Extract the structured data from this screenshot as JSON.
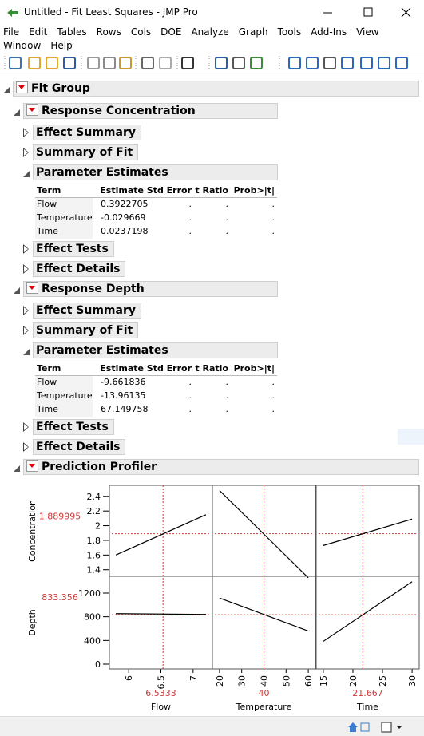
{
  "window": {
    "title": "Untitled - Fit Least Squares - JMP Pro"
  },
  "menu": [
    "File",
    "Edit",
    "Tables",
    "Rows",
    "Cols",
    "DOE",
    "Analyze",
    "Graph",
    "Tools",
    "Add-Ins",
    "View",
    "Window",
    "Help"
  ],
  "report": {
    "title": "Fit Group",
    "responses": [
      {
        "title": "Response Concentration",
        "sections": [
          "Effect Summary",
          "Summary of Fit"
        ],
        "estimates": {
          "title": "Parameter Estimates",
          "columns": [
            "Term",
            "Estimate",
            "Std Error",
            "t Ratio",
            "Prob>|t|"
          ],
          "rows": [
            [
              "Flow",
              "0.3922705",
              ".",
              ".",
              "."
            ],
            [
              "Temperature",
              "-0.029669",
              ".",
              ".",
              "."
            ],
            [
              "Time",
              "0.0237198",
              ".",
              ".",
              "."
            ]
          ]
        },
        "after": [
          "Effect Tests",
          "Effect Details"
        ]
      },
      {
        "title": "Response Depth",
        "sections": [
          "Effect Summary",
          "Summary of Fit"
        ],
        "estimates": {
          "title": "Parameter Estimates",
          "columns": [
            "Term",
            "Estimate",
            "Std Error",
            "t Ratio",
            "Prob>|t|"
          ],
          "rows": [
            [
              "Flow",
              "-9.661836",
              ".",
              ".",
              "."
            ],
            [
              "Temperature",
              "-13.96135",
              ".",
              ".",
              "."
            ],
            [
              "Time",
              "67.149758",
              ".",
              ".",
              "."
            ]
          ]
        },
        "after": [
          "Effect Tests",
          "Effect Details"
        ]
      }
    ],
    "profiler": {
      "title": "Prediction Profiler",
      "responses": [
        {
          "name": "Concentration",
          "current": 1.889995,
          "ylim": [
            1.31,
            2.55
          ],
          "yticks": [
            1.4,
            1.6,
            1.8,
            2,
            2.2,
            2.4
          ],
          "lines": [
            [
              1.6,
              2.15
            ],
            [
              2.48,
              1.29
            ],
            [
              1.73,
              2.09
            ]
          ]
        },
        {
          "name": "Depth",
          "current": 833.356,
          "ylim": [
            -81,
            1483
          ],
          "yticks": [
            0,
            400,
            800,
            1200
          ],
          "lines": [
            [
              853,
              840
            ],
            [
              1117,
              559
            ],
            [
              385,
              1392
            ]
          ]
        }
      ],
      "factors": [
        {
          "name": "Flow",
          "current": 6.5333,
          "xlim": [
            5.7,
            7.3
          ],
          "xticks": [
            6,
            6.5,
            7
          ],
          "x": [
            5.8,
            7.2
          ]
        },
        {
          "name": "Temperature",
          "current": 40,
          "xlim": [
            16.8,
            63.2
          ],
          "xticks": [
            20,
            30,
            40,
            50,
            60
          ],
          "x": [
            20,
            60
          ]
        },
        {
          "name": "Time",
          "current": 21.667,
          "xlim": [
            13.8,
            31.2
          ],
          "xticks": [
            15,
            20,
            25,
            30
          ],
          "x": [
            15,
            30
          ]
        }
      ]
    }
  }
}
